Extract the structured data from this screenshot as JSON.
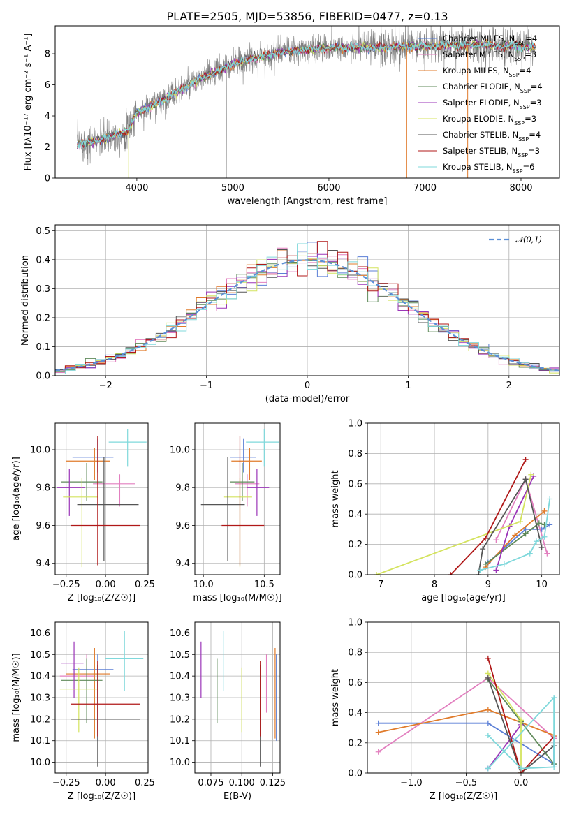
{
  "figure": {
    "title": "PLATE=2505, MJD=53856, FIBERID=0477, z=0.13"
  },
  "models": [
    {
      "name": "Chabrier MILES",
      "nssp": "4",
      "color": "#5b7fd6"
    },
    {
      "name": "Salpeter MILES",
      "nssp": "3",
      "color": "#e27fbf"
    },
    {
      "name": "Kroupa MILES",
      "nssp": "4",
      "color": "#e07b2b"
    },
    {
      "name": "Chabrier ELODIE",
      "nssp": "4",
      "color": "#5f8a5a"
    },
    {
      "name": "Salpeter ELODIE",
      "nssp": "3",
      "color": "#9b35b8"
    },
    {
      "name": "Kroupa ELODIE",
      "nssp": "3",
      "color": "#d4e35e"
    },
    {
      "name": "Chabrier STELIB",
      "nssp": "4",
      "color": "#555555"
    },
    {
      "name": "Salpeter STELIB",
      "nssp": "3",
      "color": "#b01818"
    },
    {
      "name": "Kroupa STELIB",
      "nssp": "6",
      "color": "#7fd8db"
    }
  ],
  "chart_data": [
    {
      "id": "spectrum",
      "type": "line",
      "xlabel": "wavelength [Angstrom, rest frame]",
      "ylabel": "Flux [fλ10⁻¹⁷ erg cm⁻² s⁻¹ A⁻¹]",
      "xlim": [
        3150,
        8400
      ],
      "ylim": [
        0,
        9.8
      ],
      "xticks": [
        4000,
        5000,
        6000,
        7000,
        8000
      ],
      "yticks": [
        0,
        2,
        4,
        6,
        8
      ],
      "data_color": "#808080",
      "wave_range": [
        3380,
        8150
      ],
      "continuum": [
        [
          3380,
          2.2
        ],
        [
          3500,
          2.3
        ],
        [
          3700,
          2.6
        ],
        [
          3900,
          3.0
        ],
        [
          4000,
          4.2
        ],
        [
          4200,
          4.8
        ],
        [
          4400,
          5.5
        ],
        [
          4600,
          6.2
        ],
        [
          4800,
          6.8
        ],
        [
          5000,
          7.3
        ],
        [
          5200,
          7.7
        ],
        [
          5500,
          8.1
        ],
        [
          6000,
          8.4
        ],
        [
          6500,
          8.4
        ],
        [
          7000,
          8.5
        ],
        [
          7500,
          8.6
        ],
        [
          8150,
          8.4
        ]
      ],
      "legend_position": "upper right"
    },
    {
      "id": "residual-hist",
      "type": "bar",
      "xlabel": "(data-model)/error",
      "ylabel": "Normed distribution",
      "xlim": [
        -2.5,
        2.5
      ],
      "ylim": [
        0,
        0.52
      ],
      "xticks": [
        -2,
        -1,
        0,
        1,
        2
      ],
      "yticks": [
        0,
        0.1,
        0.2,
        0.3,
        0.4,
        0.5
      ],
      "bin_width": 0.1,
      "grid": true,
      "legend": "𝒩(0,1)",
      "legend_position": "upper right",
      "gauss_color": "#5b8fd6"
    },
    {
      "id": "age-vs-Z",
      "type": "scatter",
      "xlabel": "Z [log₁₀(Z/Z☉)]",
      "ylabel": "age  [log₁₀(age/yr)]",
      "xlim": [
        -0.32,
        0.27
      ],
      "ylim": [
        9.34,
        10.14
      ],
      "xticks": [
        -0.25,
        0.0,
        0.25
      ],
      "xticklabels": [
        "−0.25",
        "0.00",
        "0.25"
      ],
      "yticks": [
        9.4,
        9.6,
        9.8,
        10.0
      ],
      "grid": true,
      "points": [
        {
          "x": -0.05,
          "y": 9.96,
          "xerr": [
            0.16,
            0.1
          ],
          "yerr": [
            0.08,
            0.1
          ],
          "model": 0
        },
        {
          "x": 0.09,
          "y": 9.82,
          "xerr": [
            0.17,
            0.1
          ],
          "yerr": [
            0.12,
            0.05
          ],
          "model": 1
        },
        {
          "x": -0.07,
          "y": 9.94,
          "xerr": [
            0.18,
            0.1
          ],
          "yerr": [
            0.1,
            0.07
          ],
          "model": 2
        },
        {
          "x": -0.12,
          "y": 9.83,
          "xerr": [
            0.16,
            0.1
          ],
          "yerr": [
            0.1,
            0.1
          ],
          "model": 3
        },
        {
          "x": -0.23,
          "y": 9.8,
          "xerr": [
            0.08,
            0.1
          ],
          "yerr": [
            0.15,
            0.1
          ],
          "model": 4
        },
        {
          "x": -0.15,
          "y": 9.75,
          "xerr": [
            0.12,
            0.1
          ],
          "yerr": [
            0.37,
            0.1
          ],
          "model": 5
        },
        {
          "x": -0.01,
          "y": 9.71,
          "xerr": [
            0.17,
            0.22
          ],
          "yerr": [
            0.3,
            0.25
          ],
          "model": 6
        },
        {
          "x": -0.05,
          "y": 9.6,
          "xerr": [
            0.17,
            0.27
          ],
          "yerr": [
            0.21,
            0.47
          ],
          "model": 7
        },
        {
          "x": 0.14,
          "y": 10.04,
          "xerr": [
            0.12,
            0.12
          ],
          "yerr": [
            0.13,
            0.07
          ],
          "model": 8
        }
      ]
    },
    {
      "id": "age-vs-mass",
      "type": "scatter",
      "xlabel": "mass [log₁₀(M/M☉)]",
      "ylabel": "",
      "xlim": [
        9.93,
        10.63
      ],
      "ylim": [
        9.34,
        10.14
      ],
      "xticks": [
        10.0,
        10.5
      ],
      "xticklabels": [
        "10.0",
        "10.5"
      ],
      "yticks": [
        9.4,
        9.6,
        9.8,
        10.0
      ],
      "grid": true,
      "points": [
        {
          "x": 10.33,
          "y": 9.96,
          "xerr": [
            0.11,
            0.1
          ],
          "yerr": [
            0.08,
            0.1
          ],
          "model": 0
        },
        {
          "x": 10.36,
          "y": 9.82,
          "xerr": [
            0.1,
            0.1
          ],
          "yerr": [
            0.12,
            0.05
          ],
          "model": 1
        },
        {
          "x": 10.38,
          "y": 9.94,
          "xerr": [
            0.15,
            0.1
          ],
          "yerr": [
            0.1,
            0.07
          ],
          "model": 2
        },
        {
          "x": 10.32,
          "y": 9.83,
          "xerr": [
            0.1,
            0.1
          ],
          "yerr": [
            0.1,
            0.1
          ],
          "model": 3
        },
        {
          "x": 10.44,
          "y": 9.8,
          "xerr": [
            0.08,
            0.1
          ],
          "yerr": [
            0.15,
            0.1
          ],
          "model": 4
        },
        {
          "x": 10.3,
          "y": 9.75,
          "xerr": [
            0.13,
            0.1
          ],
          "yerr": [
            0.37,
            0.1
          ],
          "model": 5
        },
        {
          "x": 10.2,
          "y": 9.71,
          "xerr": [
            0.22,
            0.14
          ],
          "yerr": [
            0.3,
            0.25
          ],
          "model": 6
        },
        {
          "x": 10.3,
          "y": 9.6,
          "xerr": [
            0.15,
            0.2
          ],
          "yerr": [
            0.21,
            0.47
          ],
          "model": 7
        },
        {
          "x": 10.5,
          "y": 10.04,
          "xerr": [
            0.15,
            0.12
          ],
          "yerr": [
            0.13,
            0.07
          ],
          "model": 8
        }
      ]
    },
    {
      "id": "weight-vs-age",
      "type": "line",
      "xlabel": "age  [log₁₀(age/yr)]",
      "ylabel": "mass weight",
      "xlim": [
        6.75,
        10.33
      ],
      "ylim": [
        0,
        1.0
      ],
      "xticks": [
        7,
        8,
        9,
        10
      ],
      "yticks": [
        0,
        0.2,
        0.4,
        0.6,
        0.8,
        1.0
      ],
      "grid": true,
      "series": [
        {
          "model": 0,
          "points": [
            [
              9.0,
              0.08
            ],
            [
              9.7,
              0.3
            ],
            [
              10.0,
              0.3
            ],
            [
              10.15,
              0.33
            ]
          ]
        },
        {
          "model": 1,
          "points": [
            [
              9.15,
              0.23
            ],
            [
              9.7,
              0.63
            ],
            [
              10.1,
              0.14
            ]
          ]
        },
        {
          "model": 2,
          "points": [
            [
              8.95,
              0.05
            ],
            [
              9.5,
              0.26
            ],
            [
              10.05,
              0.42
            ]
          ]
        },
        {
          "model": 3,
          "points": [
            [
              8.95,
              0.07
            ],
            [
              9.7,
              0.27
            ],
            [
              9.95,
              0.34
            ],
            [
              10.05,
              0.33
            ]
          ]
        },
        {
          "model": 4,
          "points": [
            [
              9.15,
              0.03
            ],
            [
              9.4,
              0.32
            ],
            [
              9.85,
              0.65
            ]
          ]
        },
        {
          "model": 5,
          "points": [
            [
              6.92,
              0.0
            ],
            [
              9.6,
              0.35
            ],
            [
              9.8,
              0.66
            ]
          ]
        },
        {
          "model": 6,
          "points": [
            [
              8.82,
              0.0
            ],
            [
              8.9,
              0.17
            ],
            [
              9.7,
              0.63
            ],
            [
              10.0,
              0.18
            ]
          ]
        },
        {
          "model": 7,
          "points": [
            [
              8.3,
              0.0
            ],
            [
              8.95,
              0.24
            ],
            [
              9.7,
              0.76
            ]
          ]
        },
        {
          "model": 8,
          "points": [
            [
              8.85,
              0.03
            ],
            [
              9.3,
              0.07
            ],
            [
              9.78,
              0.14
            ],
            [
              9.9,
              0.22
            ],
            [
              10.05,
              0.25
            ],
            [
              10.15,
              0.5
            ]
          ]
        }
      ]
    },
    {
      "id": "mass-vs-Z",
      "type": "scatter",
      "xlabel": "Z [log₁₀(Z/Z☉)]",
      "ylabel": "mass [log₁₀(M/M☉)]",
      "xlim": [
        -0.32,
        0.27
      ],
      "ylim": [
        9.95,
        10.65
      ],
      "xticks": [
        -0.25,
        0.0,
        0.25
      ],
      "xticklabels": [
        "−0.25",
        "0.00",
        "0.25"
      ],
      "yticks": [
        10.0,
        10.1,
        10.2,
        10.3,
        10.4,
        10.5,
        10.6
      ],
      "grid": true,
      "points": [
        {
          "x": -0.05,
          "y": 10.43,
          "xerr": [
            0.16,
            0.1
          ],
          "yerr": [
            0.33,
            0.07
          ],
          "model": 0
        },
        {
          "x": -0.12,
          "y": 10.4,
          "xerr": [
            0.17,
            0.05
          ],
          "yerr": [
            0.17,
            0.1
          ],
          "model": 1
        },
        {
          "x": -0.07,
          "y": 10.41,
          "xerr": [
            0.18,
            0.1
          ],
          "yerr": [
            0.3,
            0.12
          ],
          "model": 2
        },
        {
          "x": -0.12,
          "y": 10.38,
          "xerr": [
            0.16,
            0.1
          ],
          "yerr": [
            0.2,
            0.1
          ],
          "model": 3
        },
        {
          "x": -0.2,
          "y": 10.46,
          "xerr": [
            0.08,
            0.06
          ],
          "yerr": [
            0.16,
            0.1
          ],
          "model": 4
        },
        {
          "x": -0.17,
          "y": 10.34,
          "xerr": [
            0.12,
            0.12
          ],
          "yerr": [
            0.2,
            0.1
          ],
          "model": 5
        },
        {
          "x": -0.05,
          "y": 10.2,
          "xerr": [
            0.17,
            0.27
          ],
          "yerr": [
            0.22,
            0.25
          ],
          "model": 6
        },
        {
          "x": -0.05,
          "y": 10.27,
          "xerr": [
            0.17,
            0.27
          ],
          "yerr": [
            0.15,
            0.2
          ],
          "model": 7
        },
        {
          "x": 0.12,
          "y": 10.48,
          "xerr": [
            0.12,
            0.12
          ],
          "yerr": [
            0.15,
            0.13
          ],
          "model": 8
        }
      ]
    },
    {
      "id": "mass-vs-ebv",
      "type": "scatter",
      "xlabel": "E(B-V)",
      "ylabel": "",
      "xlim": [
        0.062,
        0.131
      ],
      "ylim": [
        9.95,
        10.65
      ],
      "xticks": [
        0.075,
        0.1,
        0.125
      ],
      "xticklabels": [
        "0.075",
        "0.100",
        "0.125"
      ],
      "yticks": [
        10.0,
        10.1,
        10.2,
        10.3,
        10.4,
        10.5,
        10.6
      ],
      "grid": true,
      "points": [
        {
          "x": 0.128,
          "y": 10.43,
          "yerr": [
            0.33,
            0.07
          ],
          "model": 0
        },
        {
          "x": 0.12,
          "y": 10.4,
          "yerr": [
            0.17,
            0.1
          ],
          "model": 1
        },
        {
          "x": 0.127,
          "y": 10.41,
          "yerr": [
            0.3,
            0.12
          ],
          "model": 2
        },
        {
          "x": 0.08,
          "y": 10.38,
          "yerr": [
            0.2,
            0.1
          ],
          "model": 3
        },
        {
          "x": 0.067,
          "y": 10.46,
          "yerr": [
            0.16,
            0.1
          ],
          "model": 4
        },
        {
          "x": 0.1,
          "y": 10.34,
          "yerr": [
            0.2,
            0.1
          ],
          "model": 5
        },
        {
          "x": 0.115,
          "y": 10.2,
          "yerr": [
            0.22,
            0.25
          ],
          "model": 6
        },
        {
          "x": 0.115,
          "y": 10.27,
          "yerr": [
            0.15,
            0.2
          ],
          "model": 7
        },
        {
          "x": 0.085,
          "y": 10.48,
          "yerr": [
            0.15,
            0.13
          ],
          "model": 8
        }
      ]
    },
    {
      "id": "weight-vs-Z",
      "type": "line",
      "xlabel": "Z [log₁₀(Z/Z☉)]",
      "ylabel": "mass weight",
      "xlim": [
        -1.4,
        0.35
      ],
      "ylim": [
        0,
        1.0
      ],
      "xticks": [
        -1.0,
        -0.5,
        0.0
      ],
      "xticklabels": [
        "−1.0",
        "−0.5",
        "0.0"
      ],
      "yticks": [
        0,
        0.2,
        0.4,
        0.6,
        0.8,
        1.0
      ],
      "grid": true,
      "series": [
        {
          "model": 0,
          "points": [
            [
              -1.3,
              0.33
            ],
            [
              -0.3,
              0.33
            ],
            [
              0.3,
              0.06
            ],
            [
              0.3,
              0.24
            ]
          ]
        },
        {
          "model": 1,
          "points": [
            [
              -1.3,
              0.14
            ],
            [
              -0.3,
              0.63
            ],
            [
              0.3,
              0.23
            ]
          ]
        },
        {
          "model": 2,
          "points": [
            [
              -1.3,
              0.27
            ],
            [
              -0.3,
              0.42
            ],
            [
              0.3,
              0.25
            ]
          ]
        },
        {
          "model": 3,
          "points": [
            [
              -0.3,
              0.62
            ],
            [
              0.0,
              0.34
            ],
            [
              0.3,
              0.06
            ]
          ]
        },
        {
          "model": 4,
          "points": [
            [
              -0.3,
              0.03
            ],
            [
              0.0,
              0.32
            ]
          ]
        },
        {
          "model": 5,
          "points": [
            [
              -0.3,
              0.66
            ],
            [
              0.0,
              0.35
            ],
            [
              0.0,
              0.0
            ]
          ]
        },
        {
          "model": 6,
          "points": [
            [
              -0.3,
              0.63
            ],
            [
              0.0,
              0.0
            ],
            [
              0.3,
              0.18
            ]
          ]
        },
        {
          "model": 7,
          "points": [
            [
              -0.3,
              0.76
            ],
            [
              0.0,
              0.0
            ],
            [
              0.3,
              0.24
            ]
          ]
        },
        {
          "model": 8,
          "points": [
            [
              -0.3,
              0.25
            ],
            [
              0.0,
              0.03
            ],
            [
              0.3,
              0.04
            ],
            [
              0.3,
              0.5
            ],
            [
              -0.3,
              0.03
            ]
          ]
        }
      ]
    }
  ]
}
